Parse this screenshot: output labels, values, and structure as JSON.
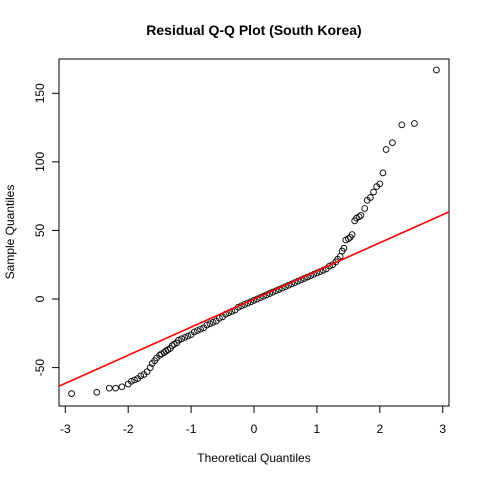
{
  "chart_data": {
    "type": "scatter",
    "title": "Residual Q-Q Plot (South Korea)",
    "xlabel": "Theoretical Quantiles",
    "ylabel": "Sample Quantiles",
    "xlim": [
      -3.1,
      3.1
    ],
    "ylim": [
      -78,
      175
    ],
    "xticks": [
      -3,
      -2,
      -1,
      0,
      1,
      2,
      3
    ],
    "yticks": [
      -50,
      0,
      50,
      100,
      150
    ],
    "grid": false,
    "reference_line": {
      "intercept": 0,
      "slope": 20.5,
      "color": "#ff0000"
    },
    "series": [
      {
        "points": [
          [
            -2.9,
            -69
          ],
          [
            -2.5,
            -68
          ],
          [
            -2.3,
            -65
          ],
          [
            -2.2,
            -65
          ],
          [
            -2.1,
            -64
          ],
          [
            -2.0,
            -62
          ],
          [
            -1.95,
            -60
          ],
          [
            -1.9,
            -59
          ],
          [
            -1.85,
            -58
          ],
          [
            -1.8,
            -56
          ],
          [
            -1.75,
            -55
          ],
          [
            -1.7,
            -53
          ],
          [
            -1.65,
            -50
          ],
          [
            -1.62,
            -47
          ],
          [
            -1.58,
            -45
          ],
          [
            -1.55,
            -43
          ],
          [
            -1.5,
            -41
          ],
          [
            -1.47,
            -40
          ],
          [
            -1.43,
            -39
          ],
          [
            -1.4,
            -38
          ],
          [
            -1.37,
            -37
          ],
          [
            -1.33,
            -36
          ],
          [
            -1.3,
            -34
          ],
          [
            -1.27,
            -33
          ],
          [
            -1.23,
            -32
          ],
          [
            -1.2,
            -30
          ],
          [
            -1.15,
            -29
          ],
          [
            -1.1,
            -28
          ],
          [
            -1.05,
            -27
          ],
          [
            -1.0,
            -26
          ],
          [
            -0.95,
            -24
          ],
          [
            -0.9,
            -23
          ],
          [
            -0.85,
            -22
          ],
          [
            -0.8,
            -21
          ],
          [
            -0.75,
            -19
          ],
          [
            -0.7,
            -18
          ],
          [
            -0.65,
            -17
          ],
          [
            -0.6,
            -16
          ],
          [
            -0.55,
            -14
          ],
          [
            -0.5,
            -13
          ],
          [
            -0.45,
            -11
          ],
          [
            -0.4,
            -10
          ],
          [
            -0.35,
            -9
          ],
          [
            -0.3,
            -8
          ],
          [
            -0.25,
            -6
          ],
          [
            -0.2,
            -5
          ],
          [
            -0.15,
            -4
          ],
          [
            -0.1,
            -3
          ],
          [
            -0.05,
            -2
          ],
          [
            0.0,
            -1
          ],
          [
            0.05,
            0
          ],
          [
            0.1,
            1
          ],
          [
            0.15,
            2
          ],
          [
            0.2,
            3
          ],
          [
            0.25,
            4
          ],
          [
            0.3,
            5
          ],
          [
            0.35,
            6
          ],
          [
            0.4,
            7
          ],
          [
            0.45,
            8
          ],
          [
            0.5,
            9
          ],
          [
            0.55,
            10
          ],
          [
            0.6,
            11
          ],
          [
            0.65,
            12
          ],
          [
            0.7,
            13
          ],
          [
            0.75,
            14
          ],
          [
            0.8,
            15
          ],
          [
            0.85,
            16
          ],
          [
            0.9,
            17
          ],
          [
            0.95,
            18
          ],
          [
            1.0,
            19
          ],
          [
            1.05,
            20
          ],
          [
            1.1,
            21
          ],
          [
            1.15,
            22
          ],
          [
            1.2,
            24
          ],
          [
            1.25,
            25
          ],
          [
            1.3,
            27
          ],
          [
            1.33,
            29
          ],
          [
            1.37,
            31
          ],
          [
            1.4,
            35
          ],
          [
            1.43,
            37
          ],
          [
            1.46,
            43
          ],
          [
            1.5,
            44
          ],
          [
            1.53,
            45
          ],
          [
            1.56,
            47
          ],
          [
            1.6,
            57
          ],
          [
            1.63,
            59
          ],
          [
            1.67,
            60
          ],
          [
            1.7,
            61
          ],
          [
            1.76,
            66
          ],
          [
            1.8,
            72
          ],
          [
            1.85,
            74
          ],
          [
            1.9,
            78
          ],
          [
            1.95,
            82
          ],
          [
            2.0,
            84
          ],
          [
            2.05,
            92
          ],
          [
            2.1,
            109
          ],
          [
            2.2,
            114
          ],
          [
            2.35,
            127
          ],
          [
            2.55,
            128
          ],
          [
            2.9,
            167
          ]
        ]
      }
    ]
  }
}
